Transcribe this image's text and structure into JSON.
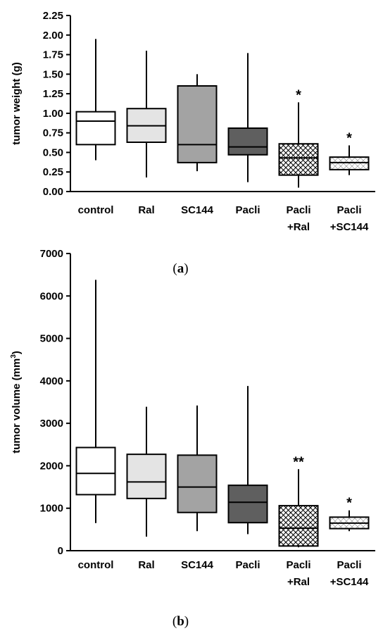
{
  "chart_data": [
    {
      "type": "boxplot",
      "panel_label": [
        "(",
        "a",
        ")"
      ],
      "ylabel": "tumor weight (g)",
      "ylim": [
        0,
        2.25
      ],
      "yticks": [
        "0.00",
        "0.25",
        "0.50",
        "0.75",
        "1.00",
        "1.25",
        "1.50",
        "1.75",
        "2.00",
        "2.25"
      ],
      "categories": [
        {
          "line1": "control",
          "line2": ""
        },
        {
          "line1": "Ral",
          "line2": ""
        },
        {
          "line1": "SC144",
          "line2": ""
        },
        {
          "line1": "Pacli",
          "line2": ""
        },
        {
          "line1": "Pacli",
          "line2": "+Ral"
        },
        {
          "line1": "Pacli",
          "line2": "+SC144"
        }
      ],
      "boxes": [
        {
          "min": 0.4,
          "q1": 0.6,
          "median": 0.9,
          "q3": 1.02,
          "max": 1.95,
          "fill": "#ffffff",
          "pattern": "none",
          "annotation": ""
        },
        {
          "min": 0.18,
          "q1": 0.63,
          "median": 0.84,
          "q3": 1.06,
          "max": 1.8,
          "fill": "#e4e4e4",
          "pattern": "none",
          "annotation": ""
        },
        {
          "min": 0.26,
          "q1": 0.37,
          "median": 0.6,
          "q3": 1.35,
          "max": 1.5,
          "fill": "#a3a3a3",
          "pattern": "none",
          "annotation": ""
        },
        {
          "min": 0.12,
          "q1": 0.47,
          "median": 0.57,
          "q3": 0.81,
          "max": 1.77,
          "fill": "#5f5f5f",
          "pattern": "none",
          "annotation": ""
        },
        {
          "min": 0.05,
          "q1": 0.21,
          "median": 0.43,
          "q3": 0.61,
          "max": 1.14,
          "fill": "#ffffff",
          "pattern": "crosshatch",
          "annotation": "*"
        },
        {
          "min": 0.21,
          "q1": 0.28,
          "median": 0.37,
          "q3": 0.44,
          "max": 0.59,
          "fill": "#ffffff",
          "pattern": "light-hatch",
          "annotation": "*"
        }
      ]
    },
    {
      "type": "boxplot",
      "panel_label": [
        "(",
        "b",
        ")"
      ],
      "ylabel": "tumor volume (mm",
      "ylabel_sup": "3",
      "ylabel_end": ")",
      "ylim": [
        0,
        7000
      ],
      "yticks": [
        "0",
        "1000",
        "2000",
        "3000",
        "4000",
        "5000",
        "6000",
        "7000"
      ],
      "categories": [
        {
          "line1": "control",
          "line2": ""
        },
        {
          "line1": "Ral",
          "line2": ""
        },
        {
          "line1": "SC144",
          "line2": ""
        },
        {
          "line1": "Pacli",
          "line2": ""
        },
        {
          "line1": "Pacli",
          "line2": "+Ral"
        },
        {
          "line1": "Pacli",
          "line2": "+SC144"
        }
      ],
      "boxes": [
        {
          "min": 650,
          "q1": 1320,
          "median": 1820,
          "q3": 2430,
          "max": 6380,
          "fill": "#ffffff",
          "pattern": "none",
          "annotation": ""
        },
        {
          "min": 330,
          "q1": 1230,
          "median": 1620,
          "q3": 2270,
          "max": 3390,
          "fill": "#e4e4e4",
          "pattern": "none",
          "annotation": ""
        },
        {
          "min": 460,
          "q1": 900,
          "median": 1500,
          "q3": 2250,
          "max": 3420,
          "fill": "#a3a3a3",
          "pattern": "none",
          "annotation": ""
        },
        {
          "min": 390,
          "q1": 660,
          "median": 1140,
          "q3": 1540,
          "max": 3880,
          "fill": "#5f5f5f",
          "pattern": "none",
          "annotation": ""
        },
        {
          "min": 80,
          "q1": 110,
          "median": 530,
          "q3": 1060,
          "max": 1920,
          "fill": "#ffffff",
          "pattern": "crosshatch",
          "annotation": "**"
        },
        {
          "min": 460,
          "q1": 520,
          "median": 650,
          "q3": 790,
          "max": 950,
          "fill": "#ffffff",
          "pattern": "light-hatch",
          "annotation": "*"
        }
      ]
    }
  ]
}
